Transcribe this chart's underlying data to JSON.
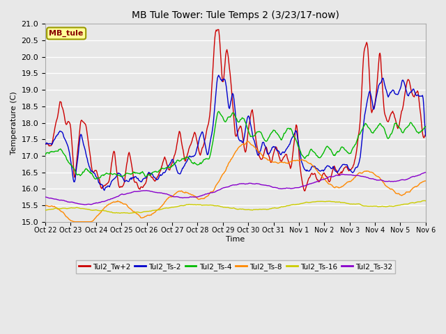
{
  "title": "MB Tule Tower: Tule Temps 2 (3/23/17-now)",
  "xlabel": "Time",
  "ylabel": "Temperature (C)",
  "ylim": [
    15.0,
    21.0
  ],
  "yticks": [
    15.0,
    15.5,
    16.0,
    16.5,
    17.0,
    17.5,
    18.0,
    18.5,
    19.0,
    19.5,
    20.0,
    20.5,
    21.0
  ],
  "xtick_labels": [
    "Oct 22",
    "Oct 23",
    "Oct 24",
    "Oct 25",
    "Oct 26",
    "Oct 27",
    "Oct 28",
    "Oct 29",
    "Oct 30",
    "Oct 31",
    "Nov 1",
    "Nov 2",
    "Nov 3",
    "Nov 4",
    "Nov 5",
    "Nov 6"
  ],
  "fig_width": 6.4,
  "fig_height": 4.8,
  "dpi": 100,
  "background_color": "#e8e8e8",
  "plot_background": "#e8e8e8",
  "grid_color": "#ffffff",
  "series": [
    {
      "label": "Tul2_Tw+2",
      "color": "#cc0000",
      "linewidth": 1.0
    },
    {
      "label": "Tul2_Ts-2",
      "color": "#0000cc",
      "linewidth": 1.0
    },
    {
      "label": "Tul2_Ts-4",
      "color": "#00bb00",
      "linewidth": 1.0
    },
    {
      "label": "Tul2_Ts-8",
      "color": "#ff8800",
      "linewidth": 1.0
    },
    {
      "label": "Tul2_Ts-16",
      "color": "#cccc00",
      "linewidth": 1.0
    },
    {
      "label": "Tul2_Ts-32",
      "color": "#8800cc",
      "linewidth": 1.0
    }
  ],
  "legend_box_color": "#ffff99",
  "legend_box_edge": "#999900",
  "legend_text": "MB_tule",
  "legend_text_color": "#880000"
}
